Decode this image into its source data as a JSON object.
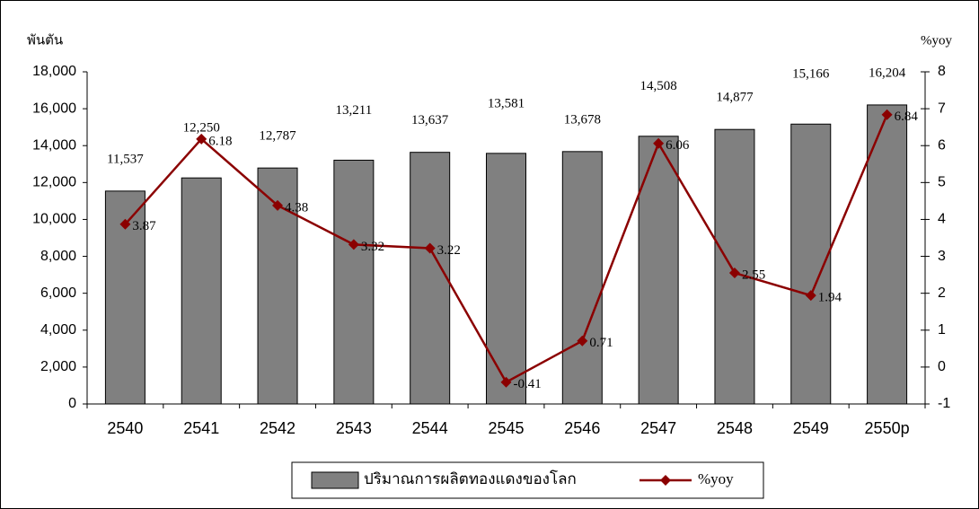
{
  "chart_data": {
    "type": "bar_line",
    "y_label": "พันตัน",
    "y2_label": "%yoy",
    "categories": [
      "2540",
      "2541",
      "2542",
      "2543",
      "2544",
      "2545",
      "2546",
      "2547",
      "2548",
      "2549",
      "2550p"
    ],
    "series": [
      {
        "name": "ปริมาณการผลิตทองแดงของโลก",
        "type": "bar",
        "color": "#808080",
        "values": [
          11537,
          12250,
          12787,
          13211,
          13637,
          13581,
          13678,
          14508,
          14877,
          15166,
          16204
        ],
        "value_labels": [
          "11,537",
          "12,250",
          "12,787",
          "13,211",
          "13,637",
          "13,581",
          "13,678",
          "14,508",
          "14,877",
          "15,166",
          "16,204"
        ]
      },
      {
        "name": "%yoy",
        "type": "line",
        "axis": "y2",
        "color": "#8b0000",
        "values": [
          3.87,
          6.18,
          4.38,
          3.32,
          3.22,
          -0.41,
          0.71,
          6.06,
          2.55,
          1.94,
          6.84
        ]
      }
    ],
    "ylim": [
      0,
      18000
    ],
    "yticks": [
      0,
      {
        "value": 2000,
        "label": "2,000"
      },
      {
        "value": 4000,
        "label": "4,000"
      },
      {
        "value": 6000,
        "label": "6,000"
      },
      {
        "value": 8000,
        "label": "8,000"
      },
      {
        "value": 10000,
        "label": "10,000"
      },
      {
        "value": 12000,
        "label": "12,000"
      },
      {
        "value": 14000,
        "label": "14,000"
      },
      {
        "value": 16000,
        "label": "16,000"
      },
      {
        "value": 18000,
        "label": "18,000"
      }
    ],
    "y2lim": [
      -1,
      8
    ],
    "y2ticks": [
      -1,
      0,
      1,
      2,
      3,
      4,
      5,
      6,
      7,
      8
    ],
    "legend": "bottom"
  }
}
